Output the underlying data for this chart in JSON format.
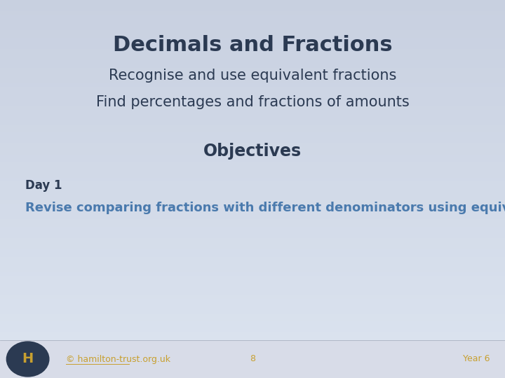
{
  "title": "Decimals and Fractions",
  "subtitle1": "Recognise and use equivalent fractions",
  "subtitle2": "Find percentages and fractions of amounts",
  "objectives_label": "Objectives",
  "day_label": "Day 1",
  "day_text": "Revise comparing fractions with different denominators using equivalence.",
  "footer_copyright": "© hamilton-trust.org.uk",
  "footer_page": "8",
  "footer_year": "Year 6",
  "bg_color_top": "#c8d0e0",
  "bg_color_bottom": "#dce4f0",
  "footer_bg": "#d8dce8",
  "title_color": "#2b3a52",
  "objectives_color": "#2b3a52",
  "day_label_color": "#2b3a52",
  "day_text_color": "#4a7aad",
  "footer_text_color": "#c8a030",
  "footer_link_color": "#c8a030",
  "h_circle_bg": "#2b3a52",
  "h_letter_color": "#c8a030",
  "title_fontsize": 22,
  "subtitle_fontsize": 15,
  "objectives_fontsize": 17,
  "day_label_fontsize": 12,
  "day_text_fontsize": 13,
  "footer_fontsize": 9
}
